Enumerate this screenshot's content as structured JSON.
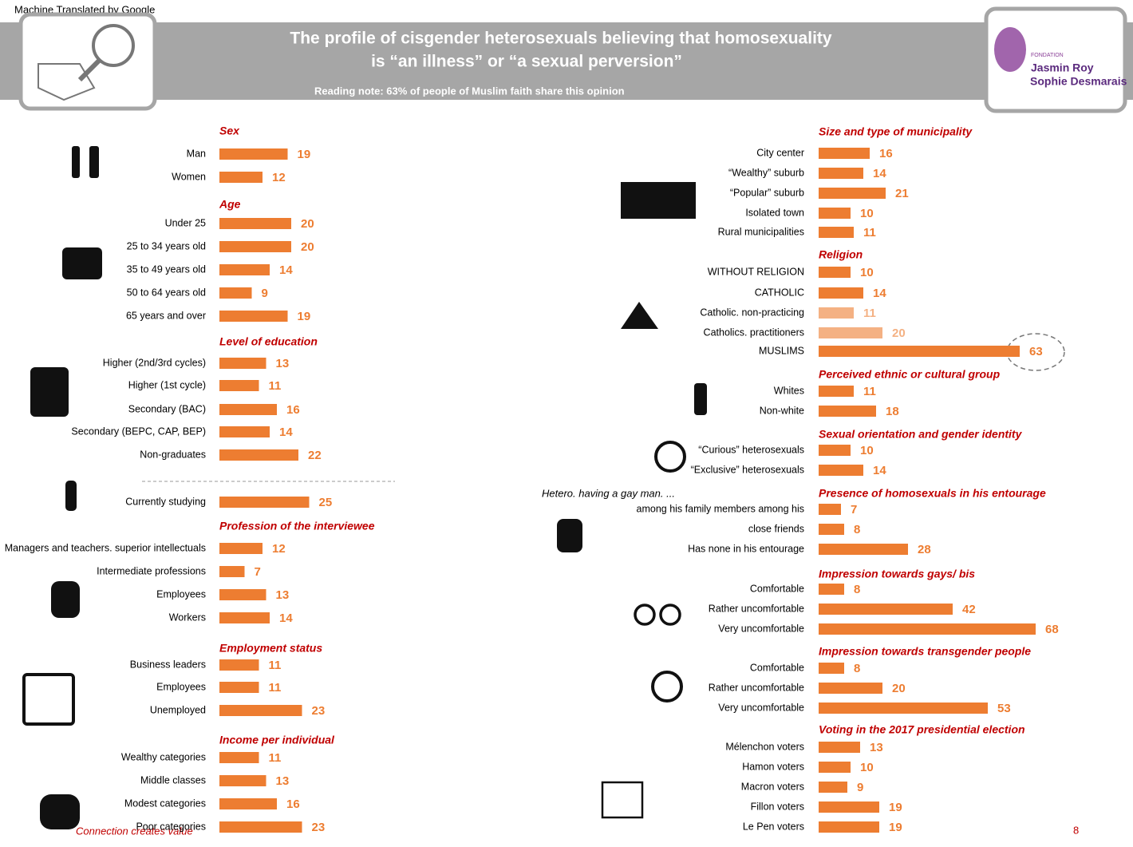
{
  "header": {
    "translator": "Machine Translated by Google",
    "title_lines": [
      "The profile of cisgender heterosexuals believing that homosexuality",
      "is “an illness” or “a sexual perversion”"
    ],
    "reading_note": "Reading note: 63% of people of Muslim faith share this opinion",
    "logo_small": "FONDATION",
    "logo_lines": [
      "Jasmin Roy",
      "Sophie Desmarais"
    ]
  },
  "aside": "Hetero. having a gay man. ...",
  "footer": {
    "tagline": "Connection creates value",
    "page": "8"
  },
  "chart_data": [
    {
      "type": "bar",
      "title": "Sex",
      "categories": [
        "Man",
        "Women"
      ],
      "values": [
        19,
        12
      ],
      "color": "#ed7d31"
    },
    {
      "type": "bar",
      "title": "Age",
      "categories": [
        "Under 25",
        "25 to 34 years old",
        "35 to 49 years old",
        "50 to 64 years old",
        "65 years and over"
      ],
      "values": [
        20,
        20,
        14,
        9,
        19
      ],
      "color": "#ed7d31"
    },
    {
      "type": "bar",
      "title": "Level of education",
      "categories": [
        "Higher (2nd/3rd cycles)",
        "Higher (1st cycle)",
        "Secondary (BAC)",
        "Secondary (BEPC, CAP, BEP)",
        "Non-graduates"
      ],
      "values": [
        13,
        11,
        16,
        14,
        22
      ],
      "color": "#ed7d31"
    },
    {
      "type": "bar",
      "categories": [
        "Currently studying"
      ],
      "values": [
        25
      ],
      "color": "#ed7d31"
    },
    {
      "type": "bar",
      "title": "Profession of the interviewee",
      "categories": [
        "Managers and teachers. superior intellectuals",
        "Intermediate professions",
        "Employees",
        "Workers"
      ],
      "values": [
        12,
        7,
        13,
        14
      ],
      "color": "#ed7d31"
    },
    {
      "type": "bar",
      "title": "Employment status",
      "categories": [
        "Business leaders",
        "Employees",
        "Unemployed"
      ],
      "values": [
        11,
        11,
        23
      ],
      "color": "#ed7d31"
    },
    {
      "type": "bar",
      "title": "Income per individual",
      "categories": [
        "Wealthy categories",
        "Middle classes",
        "Modest categories",
        "Poor categories"
      ],
      "values": [
        11,
        13,
        16,
        23
      ],
      "color": "#ed7d31"
    },
    {
      "type": "bar",
      "title": "Size and type of municipality",
      "categories": [
        "City center",
        "“Wealthy” suburb",
        "“Popular” suburb",
        "Isolated town",
        "Rural municipalities"
      ],
      "values": [
        16,
        14,
        21,
        10,
        11
      ],
      "color": "#ed7d31"
    },
    {
      "type": "bar",
      "title": "Religion",
      "categories": [
        "WITHOUT RELIGION",
        "CATHOLIC",
        "Catholic. non-practicing",
        "Catholics. practitioners",
        "MUSLIMS"
      ],
      "values": [
        10,
        14,
        11,
        20,
        63
      ],
      "colors": [
        "#ed7d31",
        "#ed7d31",
        "#f4b183",
        "#f4b183",
        "#ed7d31"
      ]
    },
    {
      "type": "bar",
      "title": "Perceived ethnic or cultural group",
      "categories": [
        "Whites",
        "Non-white"
      ],
      "values": [
        11,
        18
      ],
      "color": "#ed7d31"
    },
    {
      "type": "bar",
      "title": "Sexual orientation and gender identity",
      "categories": [
        "“Curious” heterosexuals",
        "“Exclusive” heterosexuals"
      ],
      "values": [
        10,
        14
      ],
      "color": "#ed7d31"
    },
    {
      "type": "bar",
      "title": "Presence of homosexuals in his entourage",
      "categories": [
        "among his family members among his",
        "close friends",
        "Has none in his entourage"
      ],
      "values": [
        7,
        8,
        28
      ],
      "color": "#ed7d31"
    },
    {
      "type": "bar",
      "title": "Impression towards gays/ bis",
      "categories": [
        "Comfortable",
        "Rather uncomfortable",
        "Very uncomfortable"
      ],
      "values": [
        8,
        42,
        68
      ],
      "color": "#ed7d31"
    },
    {
      "type": "bar",
      "title": "Impression towards transgender people",
      "categories": [
        "Comfortable",
        "Rather uncomfortable",
        "Very uncomfortable"
      ],
      "values": [
        8,
        20,
        53
      ],
      "color": "#ed7d31"
    },
    {
      "type": "bar",
      "title": "Voting in the 2017 presidential election",
      "categories": [
        "Mélenchon voters",
        "Hamon voters",
        "Macron voters",
        "Fillon voters",
        "Le Pen voters"
      ],
      "values": [
        13,
        10,
        9,
        19,
        19
      ],
      "color": "#ed7d31"
    }
  ]
}
